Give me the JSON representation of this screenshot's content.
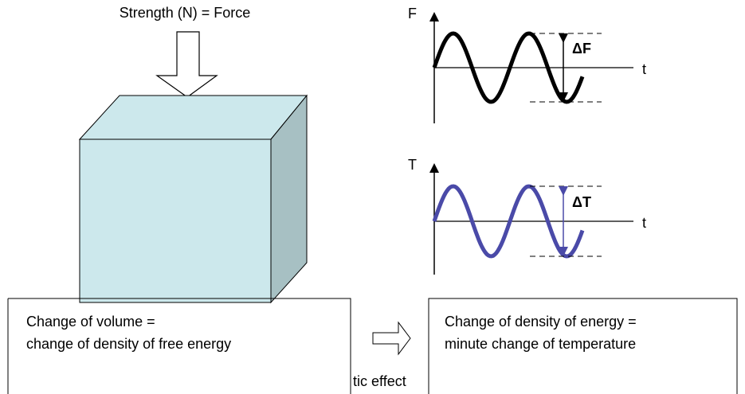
{
  "force_label": "Strength (N) = Force",
  "graphs": [
    {
      "y_label": "F",
      "x_label": "t",
      "delta_label": "ΔF"
    },
    {
      "y_label": "T",
      "x_label": "t",
      "delta_label": "ΔT"
    }
  ],
  "boxes": [
    {
      "lines": [
        "Change of volume =",
        "change of density of free energy"
      ]
    },
    {
      "lines": [
        "Change of density of energy =",
        "minute change of temperature"
      ]
    }
  ],
  "middle_label": "tic effect"
}
